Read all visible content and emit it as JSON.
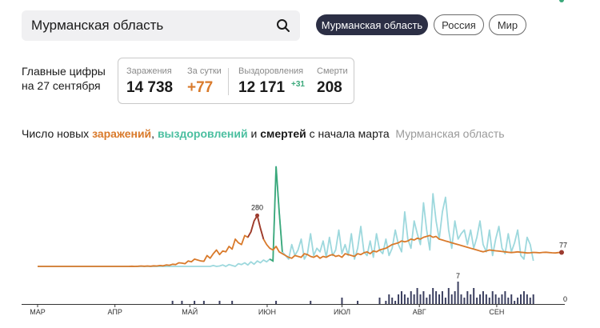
{
  "search": {
    "value": "Мурманская область"
  },
  "regions": [
    {
      "label": "Мурманская область",
      "selected": true
    },
    {
      "label": "Россия",
      "selected": false
    },
    {
      "label": "Мир",
      "selected": false
    }
  ],
  "headline": {
    "line1": "Главные цифры",
    "line2": "на 27 сентября"
  },
  "stats": {
    "infections": {
      "label": "Заражения",
      "value": "14 738"
    },
    "daily": {
      "label": "За сутки",
      "value": "+77"
    },
    "recoveries": {
      "label": "Выздоровления",
      "value": "12 171",
      "delta": "+31"
    },
    "deaths": {
      "label": "Смерти",
      "value": "208"
    }
  },
  "chart_title": {
    "prefix": "Число новых ",
    "infections": "заражений",
    "sep1": ", ",
    "recoveries": "выздоровлений",
    "sep2": " и ",
    "deaths": "смертей",
    "suffix": " с начала марта",
    "region": "Мурманская область"
  },
  "colors": {
    "infections": "#d97a2b",
    "peak": "#9c3b2f",
    "recoveries": "#9dd8dd",
    "recoveries_spike": "#3aa87a",
    "deaths": "#3c4060",
    "dark_chip": "#2c2f45"
  },
  "chart_data": [
    {
      "type": "line",
      "x_range": [
        "2020-03-01",
        "2020-09-27"
      ],
      "series": [
        {
          "name": "заражений",
          "values": [
            0,
            0,
            0,
            0,
            0,
            0,
            0,
            0,
            0,
            0,
            0,
            0,
            0,
            0,
            0,
            0,
            0,
            0,
            0,
            0,
            0,
            0,
            0,
            0,
            0,
            0,
            0,
            0,
            0,
            0,
            1,
            0,
            1,
            2,
            1,
            2,
            1,
            3,
            2,
            5,
            3,
            8,
            6,
            12,
            10,
            20,
            18,
            15,
            30,
            25,
            40,
            35,
            30,
            28,
            60,
            45,
            70,
            90,
            65,
            85,
            80,
            110,
            95,
            150,
            130,
            120,
            170,
            160,
            190,
            250,
            280,
            210,
            150,
            120,
            100,
            90,
            110,
            80,
            70,
            60,
            50,
            45,
            60,
            55,
            50,
            70,
            65,
            55,
            50,
            60,
            45,
            55,
            50,
            60,
            65,
            55,
            60,
            50,
            70,
            65,
            60,
            55,
            70,
            65,
            75,
            80,
            70,
            85,
            80,
            90,
            95,
            100,
            110,
            120,
            125,
            130,
            140,
            135,
            140,
            150,
            145,
            155,
            150,
            160,
            165,
            170,
            160,
            165,
            150,
            145,
            140,
            135,
            130,
            125,
            120,
            115,
            110,
            105,
            100,
            95,
            90,
            85,
            80,
            85,
            90,
            88,
            86,
            84,
            82,
            80,
            78,
            76,
            78,
            80,
            78,
            76,
            74,
            75,
            77,
            76,
            75,
            77,
            78,
            76,
            75,
            74,
            76,
            77
          ]
        },
        {
          "name": "выздоровлений",
          "values": [
            0,
            0,
            0,
            0,
            0,
            0,
            0,
            0,
            0,
            0,
            0,
            0,
            0,
            0,
            0,
            0,
            0,
            0,
            0,
            0,
            0,
            0,
            0,
            0,
            0,
            0,
            0,
            0,
            0,
            0,
            0,
            0,
            0,
            0,
            0,
            0,
            0,
            0,
            0,
            0,
            0,
            0,
            0,
            0,
            0,
            0,
            0,
            0,
            0,
            0,
            0,
            0,
            0,
            0,
            0,
            0,
            5,
            0,
            2,
            8,
            0,
            10,
            5,
            0,
            15,
            10,
            20,
            8,
            25,
            12,
            30,
            20,
            35,
            25,
            40,
            30,
            550,
            300,
            80,
            60,
            40,
            120,
            60,
            90,
            150,
            40,
            70,
            180,
            60,
            100,
            80,
            140,
            50,
            160,
            60,
            90,
            200,
            70,
            120,
            60,
            180,
            40,
            100,
            220,
            80,
            60,
            140,
            50,
            180,
            90,
            70,
            150,
            60,
            100,
            200,
            120,
            80,
            300,
            150,
            100,
            250,
            180,
            120,
            350,
            200,
            90,
            400,
            250,
            150,
            300,
            380,
            200,
            100,
            250,
            150,
            180,
            200,
            120,
            200,
            100,
            160,
            250,
            120,
            80,
            200,
            60,
            150,
            220,
            100,
            70,
            180,
            80,
            130,
            200,
            60,
            40,
            160,
            120,
            31
          ]
        },
        {
          "name": "смертей",
          "values": [
            0,
            0,
            0,
            0,
            0,
            0,
            0,
            0,
            0,
            0,
            0,
            0,
            0,
            0,
            0,
            0,
            0,
            0,
            0,
            0,
            0,
            0,
            0,
            0,
            0,
            0,
            0,
            0,
            0,
            0,
            0,
            0,
            0,
            0,
            0,
            0,
            0,
            0,
            0,
            0,
            0,
            0,
            0,
            1,
            0,
            0,
            1,
            0,
            0,
            0,
            1,
            0,
            0,
            1,
            0,
            0,
            0,
            0,
            1,
            0,
            0,
            0,
            1,
            0,
            0,
            0,
            0,
            0,
            0,
            0,
            0,
            0,
            0,
            0,
            0,
            0,
            1,
            0,
            0,
            0,
            0,
            0,
            0,
            0,
            0,
            0,
            0,
            1,
            0,
            0,
            0,
            0,
            0,
            0,
            0,
            0,
            0,
            2,
            0,
            0,
            0,
            0,
            1,
            0,
            0,
            0,
            0,
            0,
            0,
            2,
            0,
            1,
            3,
            2,
            1,
            3,
            4,
            3,
            2,
            4,
            3,
            5,
            3,
            4,
            2,
            3,
            5,
            4,
            3,
            4,
            2,
            5,
            3,
            4,
            7,
            3,
            2,
            4,
            3,
            5,
            2,
            3,
            4,
            3,
            2,
            4,
            3,
            2,
            3,
            4,
            2,
            3,
            1,
            2,
            3,
            4,
            3,
            2,
            3,
            0
          ]
        }
      ],
      "annotations": [
        {
          "label": "280",
          "series": "заражений"
        },
        {
          "label": "77",
          "series": "заражений"
        },
        {
          "label": "31",
          "series": "выздоровлений"
        },
        {
          "label": "7",
          "series": "смертей"
        },
        {
          "label": "0",
          "series": "смертей"
        }
      ],
      "x_tick_labels": [
        "МАР",
        "АПР",
        "МАЙ",
        "ИЮН",
        "ИЮЛ",
        "АВГ",
        "СЕН"
      ]
    }
  ]
}
